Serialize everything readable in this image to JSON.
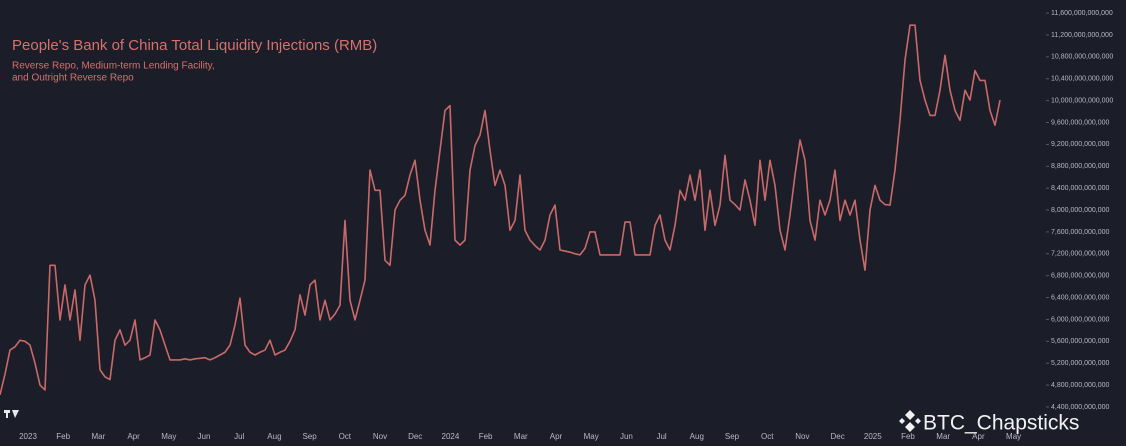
{
  "chart_data": {
    "type": "line",
    "title": "People's Bank of China Total Liquidity Injections (RMB)",
    "subtitle": [
      "Reverse Repo, Medium-term Lending Facility,",
      "and Outright Reverse Repo"
    ],
    "watermark": "BTC_Chapsticks",
    "x_labels": [
      "2023",
      "Feb",
      "Mar",
      "Apr",
      "May",
      "Jun",
      "Jul",
      "Aug",
      "Sep",
      "Oct",
      "Nov",
      "Dec",
      "2024",
      "Feb",
      "Mar",
      "Apr",
      "May",
      "Jun",
      "Jul",
      "Aug",
      "Sep",
      "Oct",
      "Nov",
      "Dec",
      "2025",
      "Feb",
      "Mar",
      "Apr",
      "May"
    ],
    "ylim": [
      4070000000000.0,
      11840000000000.0
    ],
    "yticks": [
      {
        "value": 4400000000000.0,
        "label": "4,400,000,000,000"
      },
      {
        "value": 4800000000000.0,
        "label": "4,800,000,000,000"
      },
      {
        "value": 5200000000000.0,
        "label": "5,200,000,000,000"
      },
      {
        "value": 5600000000000.0,
        "label": "5,600,000,000,000"
      },
      {
        "value": 6000000000000.0,
        "label": "6,000,000,000,000"
      },
      {
        "value": 6400000000000.0,
        "label": "6,400,000,000,000"
      },
      {
        "value": 6800000000000.0,
        "label": "6,800,000,000,000"
      },
      {
        "value": 7200000000000.0,
        "label": "7,200,000,000,000"
      },
      {
        "value": 7600000000000.0,
        "label": "7,600,000,000,000"
      },
      {
        "value": 8000000000000.0,
        "label": "8,000,000,000,000"
      },
      {
        "value": 8400000000000.0,
        "label": "8,400,000,000,000"
      },
      {
        "value": 8800000000000.0,
        "label": "8,800,000,000,000"
      },
      {
        "value": 9200000000000.0,
        "label": "9,200,000,000,000"
      },
      {
        "value": 9600000000000.0,
        "label": "9,600,000,000,000"
      },
      {
        "value": 10000000000000.0,
        "label": "10,000,000,000,000"
      },
      {
        "value": 10400000000000.0,
        "label": "10,400,000,000,000"
      },
      {
        "value": 10800000000000.0,
        "label": "10,800,000,000,000"
      },
      {
        "value": 11200000000000.0,
        "label": "11,200,000,000,000"
      },
      {
        "value": 11600000000000.0,
        "label": "11,600,000,000,000"
      }
    ],
    "series": [
      {
        "color": "#c96a68",
        "values": [
          4620000000000.0,
          5000000000000.0,
          5440000000000.0,
          5500000000000.0,
          5620000000000.0,
          5600000000000.0,
          5530000000000.0,
          5200000000000.0,
          4800000000000.0,
          4710000000000.0,
          6990000000000.0,
          6990000000000.0,
          5990000000000.0,
          6630000000000.0,
          5990000000000.0,
          6540000000000.0,
          5620000000000.0,
          6630000000000.0,
          6810000000000.0,
          6350000000000.0,
          5080000000000.0,
          4950000000000.0,
          4900000000000.0,
          5620000000000.0,
          5810000000000.0,
          5530000000000.0,
          5620000000000.0,
          5990000000000.0,
          5260000000000.0,
          5300000000000.0,
          5350000000000.0,
          5990000000000.0,
          5810000000000.0,
          5530000000000.0,
          5260000000000.0,
          5260000000000.0,
          5260000000000.0,
          5280000000000.0,
          5260000000000.0,
          5280000000000.0,
          5290000000000.0,
          5300000000000.0,
          5260000000000.0,
          5300000000000.0,
          5350000000000.0,
          5400000000000.0,
          5530000000000.0,
          5900000000000.0,
          6390000000000.0,
          5530000000000.0,
          5400000000000.0,
          5350000000000.0,
          5400000000000.0,
          5440000000000.0,
          5620000000000.0,
          5350000000000.0,
          5400000000000.0,
          5440000000000.0,
          5600000000000.0,
          5810000000000.0,
          6450000000000.0,
          6080000000000.0,
          6630000000000.0,
          6720000000000.0,
          5990000000000.0,
          6350000000000.0,
          5990000000000.0,
          6100000000000.0,
          6260000000000.0,
          7810000000000.0,
          6350000000000.0,
          5990000000000.0,
          6350000000000.0,
          6720000000000.0,
          8730000000000.0,
          8360000000000.0,
          8360000000000.0,
          7080000000000.0,
          6990000000000.0,
          8000000000000.0,
          8180000000000.0,
          8270000000000.0,
          8640000000000.0,
          8910000000000.0,
          8180000000000.0,
          7630000000000.0,
          7360000000000.0,
          8360000000000.0,
          9090000000000.0,
          9820000000000.0,
          9910000000000.0,
          7450000000000.0,
          7360000000000.0,
          7450000000000.0,
          8730000000000.0,
          9180000000000.0,
          9370000000000.0,
          9820000000000.0,
          9090000000000.0,
          8450000000000.0,
          8730000000000.0,
          8450000000000.0,
          7630000000000.0,
          7810000000000.0,
          8640000000000.0,
          7630000000000.0,
          7450000000000.0,
          7350000000000.0,
          7270000000000.0,
          7450000000000.0,
          7910000000000.0,
          8090000000000.0,
          7270000000000.0,
          7250000000000.0,
          7230000000000.0,
          7200000000000.0,
          7180000000000.0,
          7300000000000.0,
          7600000000000.0,
          7600000000000.0,
          7180000000000.0,
          7180000000000.0,
          7180000000000.0,
          7180000000000.0,
          7180000000000.0,
          7780000000000.0,
          7780000000000.0,
          7180000000000.0,
          7180000000000.0,
          7180000000000.0,
          7180000000000.0,
          7720000000000.0,
          7910000000000.0,
          7450000000000.0,
          7270000000000.0,
          7720000000000.0,
          8360000000000.0,
          8180000000000.0,
          8640000000000.0,
          8180000000000.0,
          8730000000000.0,
          7630000000000.0,
          8360000000000.0,
          7720000000000.0,
          8090000000000.0,
          9000000000000.0,
          8180000000000.0,
          8100000000000.0,
          8000000000000.0,
          8550000000000.0,
          8180000000000.0,
          7720000000000.0,
          8910000000000.0,
          8180000000000.0,
          8910000000000.0,
          8450000000000.0,
          7630000000000.0,
          7270000000000.0,
          7910000000000.0,
          8640000000000.0,
          9280000000000.0,
          8910000000000.0,
          7810000000000.0,
          7450000000000.0,
          8180000000000.0,
          7910000000000.0,
          8180000000000.0,
          8730000000000.0,
          7810000000000.0,
          8180000000000.0,
          7910000000000.0,
          8180000000000.0,
          7450000000000.0,
          6900000000000.0,
          8000000000000.0,
          8450000000000.0,
          8180000000000.0,
          8100000000000.0,
          8090000000000.0,
          8730000000000.0,
          9640000000000.0,
          10740000000000.0,
          11380000000000.0,
          11380000000000.0,
          10370000000000.0,
          10010000000000.0,
          9730000000000.0,
          9730000000000.0,
          10190000000000.0,
          10830000000000.0,
          10190000000000.0,
          9820000000000.0,
          9640000000000.0,
          10190000000000.0,
          10010000000000.0,
          10550000000000.0,
          10370000000000.0,
          10370000000000.0,
          9820000000000.0,
          9550000000000.0,
          10010000000000.0
        ]
      }
    ]
  }
}
